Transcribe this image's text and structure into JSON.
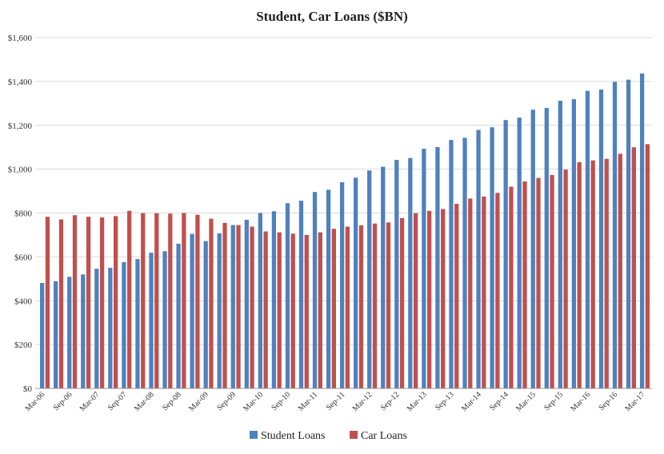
{
  "chart_data": {
    "type": "bar",
    "title": "Student, Car Loans ($BN)",
    "xlabel": "",
    "ylabel": "",
    "ylim": [
      0,
      1600
    ],
    "yticks": [
      "$0",
      "$200",
      "$400",
      "$600",
      "$800",
      "$1,000",
      "$1,200",
      "$1,400",
      "$1,600"
    ],
    "ytick_values": [
      0,
      200,
      400,
      600,
      800,
      1000,
      1200,
      1400,
      1600
    ],
    "grid": true,
    "legend_position": "bottom",
    "categories": [
      "Mar-06",
      "Jun-06",
      "Sep-06",
      "Dec-06",
      "Mar-07",
      "Jun-07",
      "Sep-07",
      "Dec-07",
      "Mar-08",
      "Jun-08",
      "Sep-08",
      "Dec-08",
      "Mar-09",
      "Jun-09",
      "Sep-09",
      "Dec-09",
      "Mar-10",
      "Jun-10",
      "Sep-10",
      "Dec-10",
      "Mar-11",
      "Jun-11",
      "Sep-11",
      "Dec-11",
      "Mar-12",
      "Jun-12",
      "Sep-12",
      "Dec-12",
      "Mar-13",
      "Jun-13",
      "Sep-13",
      "Dec-13",
      "Mar-14",
      "Jun-14",
      "Sep-14",
      "Dec-14",
      "Mar-15",
      "Jun-15",
      "Sep-15",
      "Dec-15",
      "Mar-16",
      "Jun-16",
      "Sep-16",
      "Dec-16",
      "Mar-17"
    ],
    "xtick_labels": [
      "Mar-06",
      "Sep-06",
      "Mar-07",
      "Sep-07",
      "Mar-08",
      "Sep-08",
      "Mar-09",
      "Sep-09",
      "Mar-10",
      "Sep-10",
      "Mar-11",
      "Sep-11",
      "Mar-12",
      "Sep-12",
      "Mar-13",
      "Sep-13",
      "Mar-14",
      "Sep-14",
      "Mar-15",
      "Sep-15",
      "Mar-16",
      "Sep-16",
      "Mar-17"
    ],
    "series": [
      {
        "name": "Student Loans",
        "color": "#4f81bd",
        "values": [
          481,
          489,
          509,
          520,
          546,
          550,
          576,
          590,
          619,
          626,
          660,
          705,
          672,
          707,
          745,
          769,
          800,
          808,
          845,
          856,
          896,
          906,
          940,
          961,
          994,
          1011,
          1042,
          1051,
          1093,
          1101,
          1133,
          1143,
          1179,
          1191,
          1224,
          1235,
          1271,
          1279,
          1312,
          1319,
          1357,
          1363,
          1398,
          1408,
          1436
        ]
      },
      {
        "name": "Car Loans",
        "color": "#c0504d",
        "values": [
          783,
          771,
          790,
          783,
          780,
          786,
          810,
          800,
          799,
          797,
          800,
          792,
          774,
          755,
          745,
          738,
          716,
          712,
          706,
          700,
          712,
          728,
          738,
          744,
          752,
          757,
          777,
          799,
          810,
          818,
          842,
          866,
          875,
          892,
          920,
          944,
          960,
          973,
          998,
          1032,
          1040,
          1047,
          1070,
          1100,
          1114
        ]
      }
    ]
  }
}
